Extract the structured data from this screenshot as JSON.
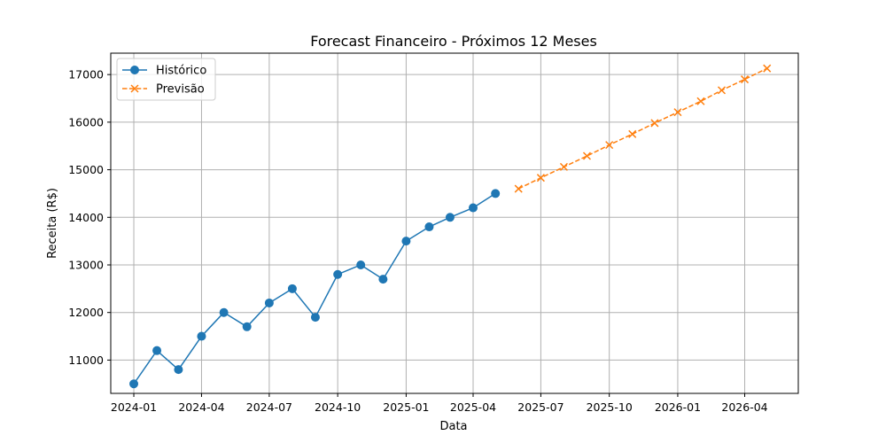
{
  "chart_data": {
    "type": "line",
    "title": "Forecast Financeiro - Próximos 12 Meses",
    "xlabel": "Data",
    "ylabel": "Receita (R$)",
    "grid": true,
    "legend_position": "top-left",
    "xlim": [
      "2023-12-01",
      "2026-06-12"
    ],
    "ylim": [
      10300,
      17450
    ],
    "x_ticks": [
      {
        "date": "2024-01-01",
        "label": "2024-01"
      },
      {
        "date": "2024-04-01",
        "label": "2024-04"
      },
      {
        "date": "2024-07-01",
        "label": "2024-07"
      },
      {
        "date": "2024-10-01",
        "label": "2024-10"
      },
      {
        "date": "2025-01-01",
        "label": "2025-01"
      },
      {
        "date": "2025-04-01",
        "label": "2025-04"
      },
      {
        "date": "2025-07-01",
        "label": "2025-07"
      },
      {
        "date": "2025-10-01",
        "label": "2025-10"
      },
      {
        "date": "2026-01-01",
        "label": "2026-01"
      },
      {
        "date": "2026-04-01",
        "label": "2026-04"
      }
    ],
    "y_ticks": [
      11000,
      12000,
      13000,
      14000,
      15000,
      16000,
      17000
    ],
    "series": [
      {
        "name": "Histórico",
        "color": "#1f77b4",
        "marker": "circle",
        "line_style": "solid",
        "x": [
          "2024-01-01",
          "2024-02-01",
          "2024-03-01",
          "2024-04-01",
          "2024-05-01",
          "2024-06-01",
          "2024-07-01",
          "2024-08-01",
          "2024-09-01",
          "2024-10-01",
          "2024-11-01",
          "2024-12-01",
          "2025-01-01",
          "2025-02-01",
          "2025-03-01",
          "2025-04-01",
          "2025-05-01"
        ],
        "values": [
          10500,
          11200,
          10800,
          11500,
          12000,
          11700,
          12200,
          12500,
          11900,
          12800,
          13000,
          12700,
          13500,
          13800,
          14000,
          14200,
          14500
        ]
      },
      {
        "name": "Previsão",
        "color": "#ff7f0e",
        "marker": "x",
        "line_style": "dashed",
        "x": [
          "2025-06-01",
          "2025-07-01",
          "2025-08-01",
          "2025-09-01",
          "2025-10-01",
          "2025-11-01",
          "2025-12-01",
          "2026-01-01",
          "2026-02-01",
          "2026-03-01",
          "2026-04-01",
          "2026-05-01"
        ],
        "values": [
          14600,
          14830,
          15060,
          15290,
          15520,
          15750,
          15980,
          16210,
          16440,
          16670,
          16900,
          17130
        ]
      }
    ]
  }
}
